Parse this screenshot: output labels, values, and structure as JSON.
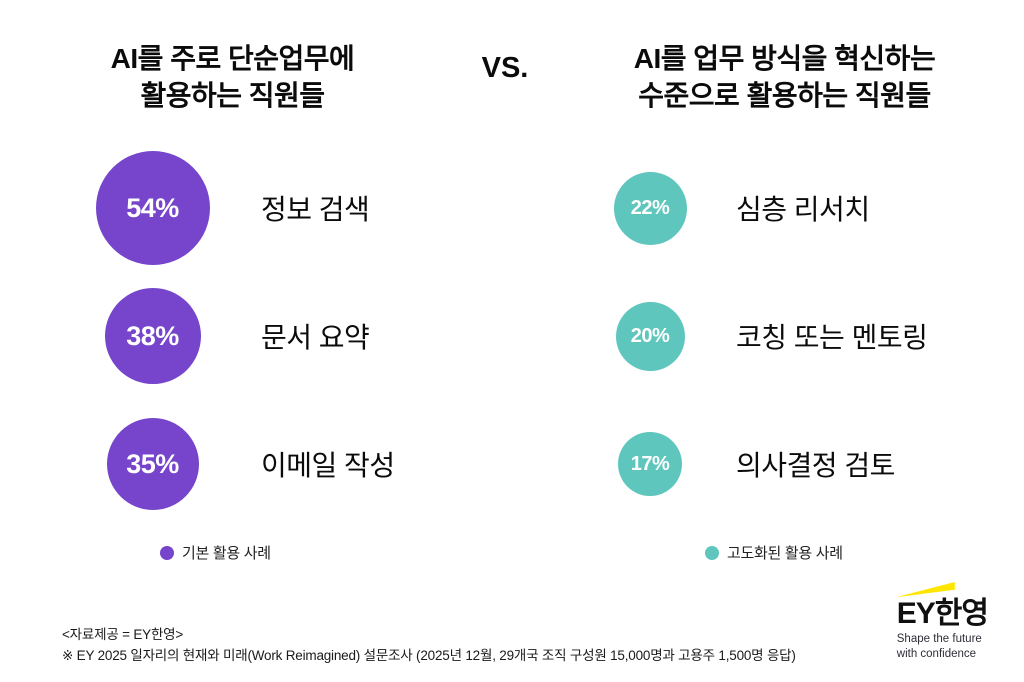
{
  "vs_label": "VS.",
  "left": {
    "title_line1": "AI를 주로 단순업무에",
    "title_line2": "활용하는 직원들",
    "color": "#7645CC",
    "legend_label": "기본 활용 사례",
    "items": [
      {
        "value": 54,
        "pct_label": "54%",
        "label": "정보 검색"
      },
      {
        "value": 38,
        "pct_label": "38%",
        "label": "문서 요약"
      },
      {
        "value": 35,
        "pct_label": "35%",
        "label": "이메일 작성"
      }
    ]
  },
  "right": {
    "title_line1": "AI를 업무 방식을 혁신하는",
    "title_line2": "수준으로 활용하는 직원들",
    "color": "#5FC6BE",
    "legend_label": "고도화된 활용 사례",
    "items": [
      {
        "value": 22,
        "pct_label": "22%",
        "label": "심층 리서치"
      },
      {
        "value": 20,
        "pct_label": "20%",
        "label": "코칭 또는 멘토링"
      },
      {
        "value": 17,
        "pct_label": "17%",
        "label": "의사결정 검토"
      }
    ]
  },
  "footer": {
    "source": "<자료제공 = EY한영>",
    "note": "※ EY 2025 일자리의 현재와 미래(Work Reimagined) 설문조사 (2025년 12월, 29개국 조직 구성원 15,000명과 고용주 1,500명 응답)"
  },
  "logo": {
    "brand": "EY한영",
    "tagline_line1": "Shape the future",
    "tagline_line2": "with confidence",
    "beam_color": "#FFE600"
  },
  "chart_data": {
    "type": "bar",
    "title": "AI를 주로 단순업무에 활용하는 직원들 VS. AI를 업무 방식을 혁신하는 수준으로 활용하는 직원들",
    "unit": "%",
    "legend_position": "bottom",
    "series": [
      {
        "name": "기본 활용 사례 (AI를 주로 단순업무에 활용하는 직원들)",
        "color": "#7645CC",
        "categories": [
          "정보 검색",
          "문서 요약",
          "이메일 작성"
        ],
        "values": [
          54,
          38,
          35
        ]
      },
      {
        "name": "고도화된 활용 사례 (AI를 업무 방식을 혁신하는 수준으로 활용하는 직원들)",
        "color": "#5FC6BE",
        "categories": [
          "심층 리서치",
          "코칭 또는 멘토링",
          "의사결정 검토"
        ],
        "values": [
          22,
          20,
          17
        ]
      }
    ]
  }
}
